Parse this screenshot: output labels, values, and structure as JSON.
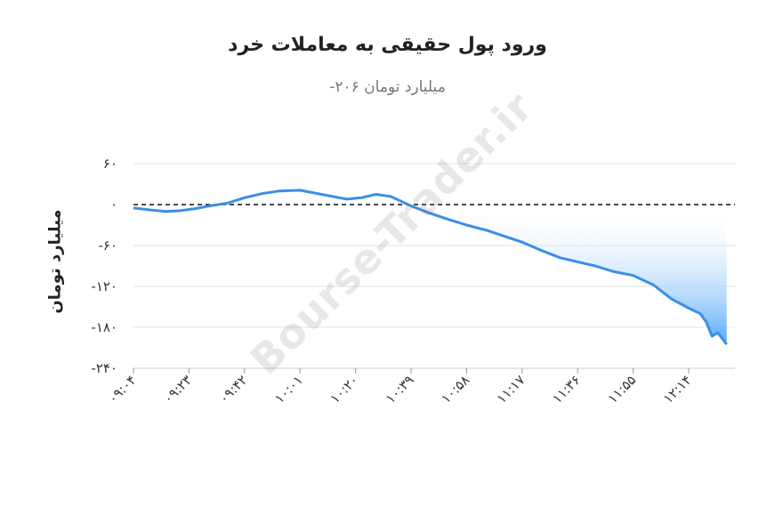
{
  "chart_data": {
    "type": "area",
    "title": "ورود پول حقیقی به معاملات خرد",
    "subtitle": "میلیارد تومان ۲۰۶-",
    "ylabel": "میلیارد تومان",
    "xlabel": "",
    "ylim": [
      -240,
      60
    ],
    "yticks": [
      60,
      0,
      -60,
      -120,
      -180,
      -240
    ],
    "ytick_labels": [
      "۶۰",
      "۰",
      "-۶۰",
      "-۱۲۰",
      "-۱۸۰",
      "-۲۴۰"
    ],
    "xtick_labels": [
      "۰۹:۰۴",
      "۰۹:۲۳",
      "۰۹:۴۲",
      "۱۰:۰۱",
      "۱۰:۲۰",
      "۱۰:۳۹",
      "۱۰:۵۸",
      "۱۱:۱۷",
      "۱۱:۳۶",
      "۱۱:۵۵",
      "۱۲:۱۴"
    ],
    "grid": true,
    "zero_line": "dashed",
    "line_color": "#3a8ee6",
    "fill_color": "#4aa3f5",
    "series": [
      {
        "name": "",
        "x": [
          "09:04",
          "09:10",
          "09:15",
          "09:20",
          "09:25",
          "09:30",
          "09:36",
          "09:42",
          "09:48",
          "09:54",
          "10:01",
          "10:06",
          "10:12",
          "10:17",
          "10:22",
          "10:27",
          "10:32",
          "10:39",
          "10:45",
          "10:52",
          "10:58",
          "11:05",
          "11:12",
          "11:17",
          "11:24",
          "11:30",
          "11:36",
          "11:42",
          "11:48",
          "11:55",
          "12:02",
          "12:08",
          "12:14",
          "12:18",
          "12:20",
          "12:22",
          "12:24",
          "12:27"
        ],
        "values": [
          -5,
          -8,
          -10,
          -9,
          -6,
          -2,
          2,
          10,
          16,
          20,
          21,
          17,
          12,
          8,
          10,
          15,
          12,
          -2,
          -12,
          -22,
          -30,
          -38,
          -48,
          -55,
          -68,
          -78,
          -84,
          -90,
          -98,
          -104,
          -118,
          -138,
          -152,
          -160,
          -172,
          -193,
          -188,
          -205
        ]
      }
    ]
  },
  "watermark": "Bourse-Trader.ir"
}
